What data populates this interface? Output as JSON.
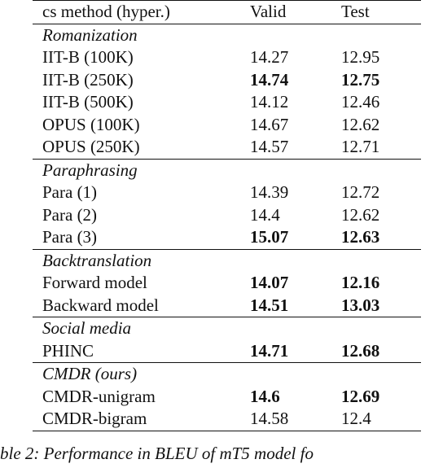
{
  "table": {
    "headers": [
      "cs method (hyper.)",
      "Valid",
      "Test"
    ],
    "sections": [
      {
        "title": "Romanization",
        "rows": [
          {
            "method": "IIT-B (100K)",
            "valid": "14.27",
            "test": "12.95",
            "valid_bold": false,
            "test_bold": false
          },
          {
            "method": "IIT-B (250K)",
            "valid": "14.74",
            "test": "12.75",
            "valid_bold": true,
            "test_bold": true
          },
          {
            "method": "IIT-B (500K)",
            "valid": "14.12",
            "test": "12.46",
            "valid_bold": false,
            "test_bold": false
          },
          {
            "method": "OPUS (100K)",
            "valid": "14.67",
            "test": "12.62",
            "valid_bold": false,
            "test_bold": false
          },
          {
            "method": "OPUS (250K)",
            "valid": "14.57",
            "test": "12.71",
            "valid_bold": false,
            "test_bold": false
          }
        ]
      },
      {
        "title": "Paraphrasing",
        "rows": [
          {
            "method": "Para (1)",
            "valid": "14.39",
            "test": "12.72",
            "valid_bold": false,
            "test_bold": false
          },
          {
            "method": "Para (2)",
            "valid": "14.4",
            "test": "12.62",
            "valid_bold": false,
            "test_bold": false
          },
          {
            "method": "Para (3)",
            "valid": "15.07",
            "test": "12.63",
            "valid_bold": true,
            "test_bold": true
          }
        ]
      },
      {
        "title": "Backtranslation",
        "rows": [
          {
            "method": "Forward model",
            "valid": "14.07",
            "test": "12.16",
            "valid_bold": true,
            "test_bold": true
          },
          {
            "method": "Backward model",
            "valid": "14.51",
            "test": "13.03",
            "valid_bold": true,
            "test_bold": true
          }
        ]
      },
      {
        "title": "Social media",
        "rows": [
          {
            "method": "PHINC",
            "valid": "14.71",
            "test": "12.68",
            "valid_bold": true,
            "test_bold": true
          }
        ]
      },
      {
        "title": "CMDR (ours)",
        "rows": [
          {
            "method": "CMDR-unigram",
            "valid": "14.6",
            "test": "12.69",
            "valid_bold": true,
            "test_bold": true
          },
          {
            "method": "CMDR-bigram",
            "valid": "14.58",
            "test": "12.4",
            "valid_bold": false,
            "test_bold": false
          }
        ]
      }
    ]
  },
  "caption": "ble 2:  Performance in BLEU of mT5 model fo"
}
